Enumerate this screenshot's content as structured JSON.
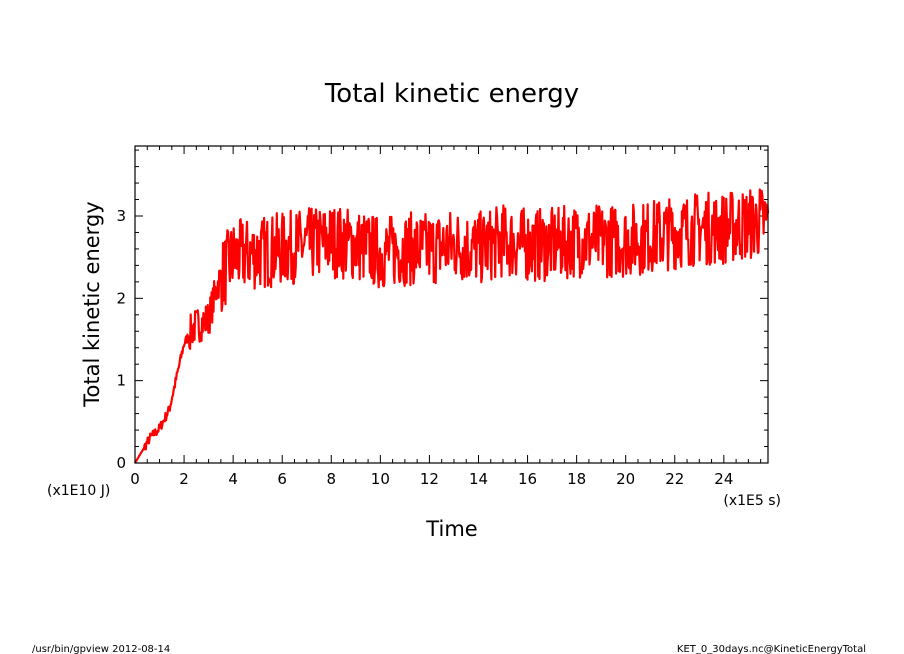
{
  "chart_data": {
    "type": "line",
    "title": "Total kinetic energy",
    "xlabel": "Time",
    "ylabel": "Total kinetic energy",
    "x_unit": "(x1E5 s)",
    "y_unit": "(x1E10 J)",
    "xlim": [
      0,
      25.8
    ],
    "ylim": [
      0,
      3.85
    ],
    "x_ticks": [
      "0",
      "2",
      "4",
      "6",
      "8",
      "10",
      "12",
      "14",
      "16",
      "18",
      "20",
      "22",
      "24"
    ],
    "y_ticks": [
      "0",
      "1",
      "2",
      "3"
    ],
    "grid": false,
    "legend": "none",
    "series": [
      {
        "color": "#ff0000",
        "x": [
          0,
          0.4,
          0.6,
          1.0,
          1.4,
          2.0,
          2.4,
          3.0,
          3.4,
          4.0,
          5.0,
          6.0,
          7.0,
          8.0,
          9.0,
          10.0,
          11.0,
          12.0,
          13.0,
          14.0,
          15.0,
          16.0,
          17.0,
          18.0,
          19.0,
          20.0,
          21.0,
          22.0,
          23.0,
          24.0,
          25.0,
          25.8
        ],
        "y": [
          0,
          0.2,
          0.3,
          0.42,
          0.65,
          1.45,
          1.65,
          1.75,
          2.2,
          2.5,
          2.55,
          2.6,
          2.65,
          2.7,
          2.65,
          2.55,
          2.6,
          2.6,
          2.65,
          2.6,
          2.7,
          2.65,
          2.65,
          2.7,
          2.7,
          2.7,
          2.75,
          2.8,
          2.85,
          2.85,
          2.9,
          2.95
        ]
      }
    ]
  },
  "footer": {
    "left": "/usr/bin/gpview  2012-08-14",
    "right": "KET_0_30days.nc@KineticEnergyTotal"
  }
}
